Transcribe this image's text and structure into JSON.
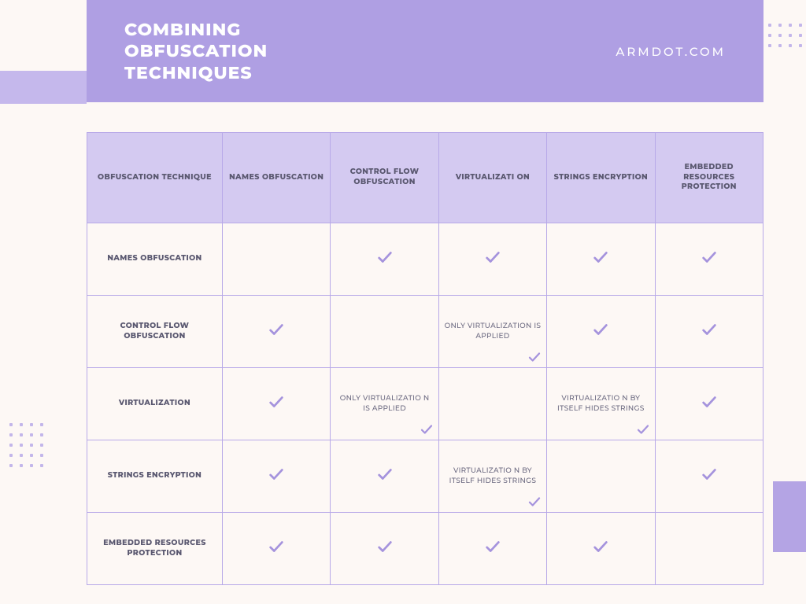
{
  "banner": {
    "title_line1": "COMBINING",
    "title_line2": "OBFUSCATION",
    "title_line3": "TECHNIQUES",
    "site": "ARMDOT.COM",
    "bg_color": "#af9fe3",
    "text_color": "#ffffff"
  },
  "page": {
    "bg_color": "#fdf8f5",
    "accent_color": "#b4a4e4",
    "dot_color": "#c3b6ea"
  },
  "table": {
    "border_color": "#b8a9e8",
    "header_bg": "#d4caf1",
    "header_text_color": "#5a5870",
    "body_text_color": "#6b6980",
    "check_color": "#a593dd",
    "columns": [
      "OBFUSCATION TECHNIQUE",
      "NAMES OBFUSCATION",
      "CONTROL FLOW OBFUSCATION",
      "VIRTUALIZATI ON",
      "STRINGS ENCRYPTION",
      "EMBEDDED RESOURCES PROTECTION"
    ],
    "row_headers": [
      "NAMES OBFUSCATION",
      "CONTROL FLOW OBFUSCATION",
      "VIRTUALIZATION",
      "STRINGS ENCRYPTION",
      "EMBEDDED RESOURCES PROTECTION"
    ],
    "cells": [
      [
        {
          "type": "empty"
        },
        {
          "type": "check"
        },
        {
          "type": "check"
        },
        {
          "type": "check"
        },
        {
          "type": "check"
        }
      ],
      [
        {
          "type": "check"
        },
        {
          "type": "empty"
        },
        {
          "type": "note_check",
          "text": "ONLY VIRTUALIZATION IS APPLIED"
        },
        {
          "type": "check"
        },
        {
          "type": "check"
        }
      ],
      [
        {
          "type": "check"
        },
        {
          "type": "note_check",
          "text": "ONLY VIRTUALIZATIO N IS APPLIED"
        },
        {
          "type": "empty"
        },
        {
          "type": "note_check",
          "text": "VIRTUALIZATIO N BY ITSELF HIDES STRINGS"
        },
        {
          "type": "check"
        }
      ],
      [
        {
          "type": "check"
        },
        {
          "type": "check"
        },
        {
          "type": "note_check",
          "text": "VIRTUALIZATIO N BY ITSELF HIDES STRINGS"
        },
        {
          "type": "empty"
        },
        {
          "type": "check"
        }
      ],
      [
        {
          "type": "check"
        },
        {
          "type": "check"
        },
        {
          "type": "check"
        },
        {
          "type": "check"
        },
        {
          "type": "empty"
        }
      ]
    ]
  }
}
